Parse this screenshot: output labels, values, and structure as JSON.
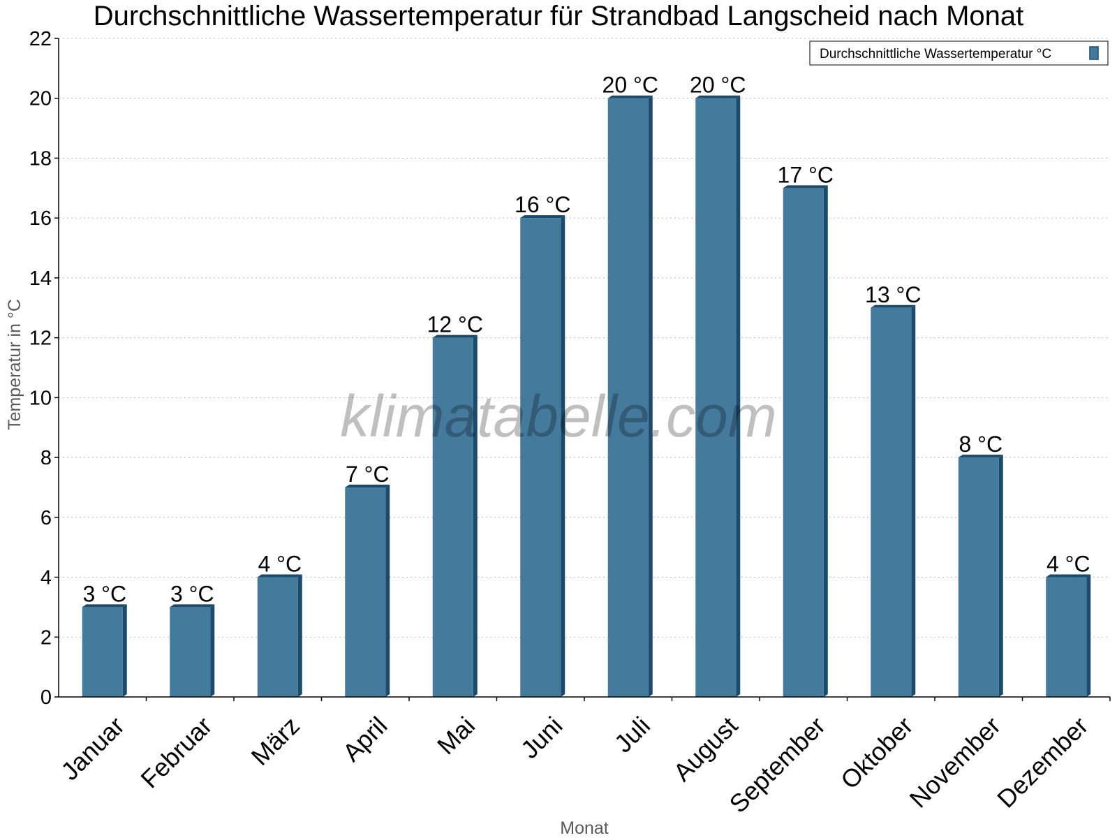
{
  "chart_data": {
    "type": "bar",
    "title": "Durchschnittliche Wassertemperatur für Strandbad Langscheid nach Monat",
    "xlabel": "Monat",
    "ylabel": "Temperatur in °C",
    "ylim": [
      0,
      22
    ],
    "yticks": [
      0,
      2,
      4,
      6,
      8,
      10,
      12,
      14,
      16,
      18,
      20,
      22
    ],
    "grid": true,
    "legend_position": "top-right",
    "categories": [
      "Januar",
      "Februar",
      "März",
      "April",
      "Mai",
      "Juni",
      "Juli",
      "August",
      "September",
      "Oktober",
      "November",
      "Dezember"
    ],
    "series": [
      {
        "name": "Durchschnittliche Wassertemperatur °C",
        "values": [
          3,
          3,
          4,
          7,
          12,
          16,
          20,
          20,
          17,
          13,
          8,
          4
        ],
        "labels": [
          "3 °C",
          "3 °C",
          "4 °C",
          "7 °C",
          "12 °C",
          "16 °C",
          "20 °C",
          "20 °C",
          "17 °C",
          "13 °C",
          "8 °C",
          "4 °C"
        ],
        "color": "#447a9c",
        "edge_color": "#1a4a6c"
      }
    ],
    "watermark": "klimatabelle.com"
  }
}
